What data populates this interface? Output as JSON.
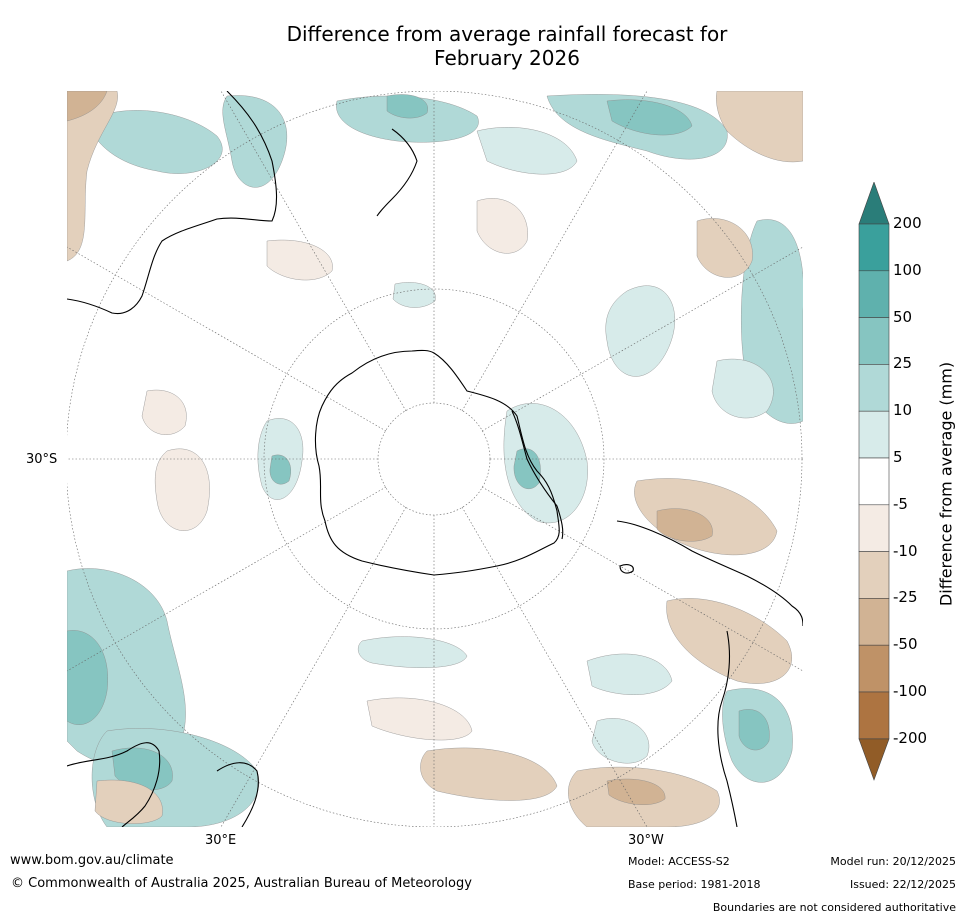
{
  "title": {
    "line1": "Difference from average rainfall forecast for",
    "line2": "February 2026"
  },
  "map": {
    "projection": "south-polar-stereographic",
    "lat_label": "30°S",
    "lon_labels": [
      "30°E",
      "30°W"
    ]
  },
  "colorbar": {
    "title": "Difference from average (mm)",
    "ticks": [
      "200",
      "100",
      "50",
      "25",
      "10",
      "5",
      "-5",
      "-10",
      "-25",
      "-50",
      "-100",
      "-200"
    ],
    "colors": [
      "#2a8f8b",
      "#3aa09c",
      "#5fb1ad",
      "#86c5c1",
      "#b0d9d7",
      "#d7ebea",
      "#ffffff",
      "#f4ebe4",
      "#e3d0bc",
      "#d1b394",
      "#bf9267",
      "#ad7441",
      "#915c27"
    ]
  },
  "footer": {
    "url": "www.bom.gov.au/climate",
    "copyright": "© Commonwealth of Australia 2025, Australian Bureau of Meteorology",
    "model": "Model: ACCESS-S2",
    "base_period": "Base period: 1981-2018",
    "model_run": "Model run: 20/12/2025",
    "issued": "Issued: 22/12/2025",
    "disclaimer": "Boundaries are not considered authoritative"
  }
}
